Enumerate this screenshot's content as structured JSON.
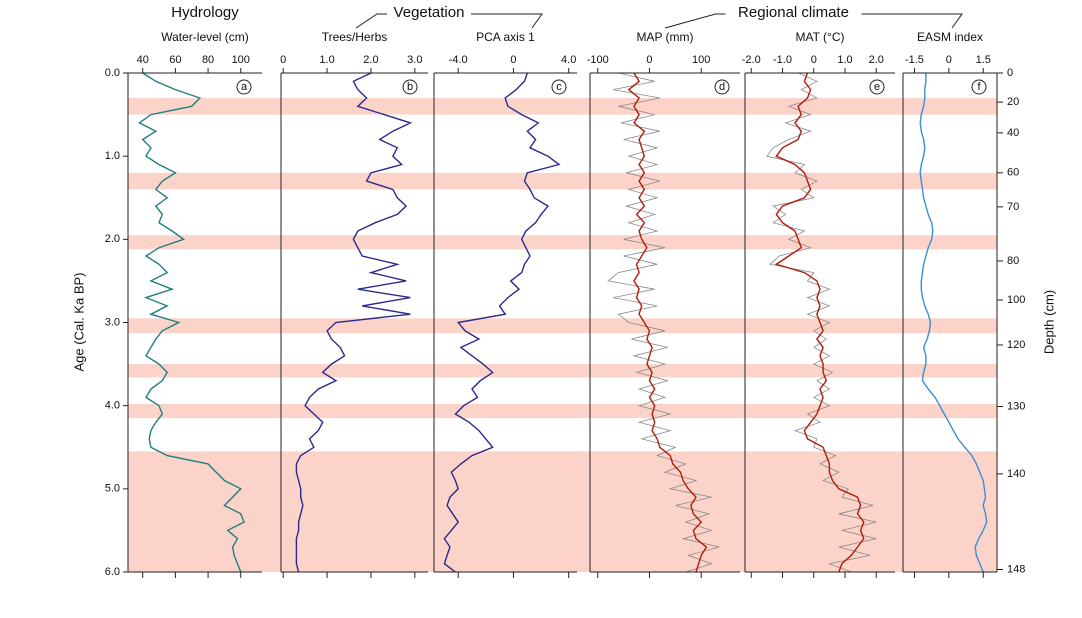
{
  "chart_data": {
    "type": "multi-panel",
    "y_label": "Age (Cal. Ka BP)",
    "ylim": [
      0,
      6
    ],
    "yticks": [
      {
        "value": 0,
        "label": "0.0"
      },
      {
        "value": 1,
        "label": "1.0"
      },
      {
        "value": 2,
        "label": "2.0"
      },
      {
        "value": 3,
        "label": "3.0"
      },
      {
        "value": 4,
        "label": "4.0"
      },
      {
        "value": 5,
        "label": "5.0"
      },
      {
        "value": 6,
        "label": "6.0"
      }
    ],
    "y2_label": "Depth (cm)",
    "y2ticks": [
      0,
      20,
      40,
      60,
      70,
      80,
      100,
      120,
      130,
      140,
      148
    ],
    "depth_age": {
      "depth": [
        0,
        20,
        40,
        60,
        70,
        80,
        100,
        120,
        130,
        140,
        148
      ],
      "age": [
        0,
        0.35,
        0.72,
        1.2,
        1.61,
        2.26,
        2.73,
        3.27,
        4.01,
        4.82,
        5.97
      ]
    },
    "bands": [
      [
        0.3,
        0.5
      ],
      [
        1.2,
        1.4
      ],
      [
        1.95,
        2.12
      ],
      [
        2.95,
        3.13
      ],
      [
        3.5,
        3.66
      ],
      [
        3.98,
        4.15
      ],
      [
        4.55,
        6.0
      ]
    ],
    "band_color": "#fbd3c9",
    "groups": [
      {
        "title": "Hydrology"
      },
      {
        "title": "Vegetation"
      },
      {
        "title": "Regional climate"
      }
    ],
    "ages": [
      0,
      0.1,
      0.2,
      0.3,
      0.4,
      0.5,
      0.6,
      0.7,
      0.8,
      0.9,
      1,
      1.1,
      1.2,
      1.3,
      1.4,
      1.5,
      1.6,
      1.7,
      1.8,
      1.9,
      2,
      2.1,
      2.2,
      2.3,
      2.4,
      2.5,
      2.6,
      2.7,
      2.8,
      2.9,
      3,
      3.1,
      3.2,
      3.3,
      3.4,
      3.5,
      3.6,
      3.7,
      3.8,
      3.9,
      4,
      4.1,
      4.2,
      4.3,
      4.4,
      4.5,
      4.6,
      4.7,
      4.8,
      4.9,
      5,
      5.1,
      5.2,
      5.3,
      5.4,
      5.5,
      5.6,
      5.7,
      5.8,
      5.9,
      6
    ],
    "panels": [
      {
        "type": "line",
        "letter": "a",
        "title": "Water-level (cm)",
        "xlim": [
          31,
          113
        ],
        "xticks": [
          40,
          60,
          80,
          100
        ],
        "series": [
          {
            "color": "#1f7f7f",
            "values": [
              40,
              48,
              60,
              75,
              70,
              45,
              38,
              48,
              40,
              45,
              42,
              50,
              60,
              52,
              48,
              55,
              48,
              52,
              50,
              58,
              65,
              50,
              42,
              50,
              55,
              45,
              58,
              42,
              55,
              45,
              62,
              52,
              48,
              45,
              42,
              50,
              55,
              52,
              45,
              42,
              50,
              52,
              48,
              45,
              44,
              45,
              55,
              80,
              85,
              90,
              100,
              95,
              90,
              100,
              102,
              92,
              98,
              95,
              96,
              98,
              100
            ]
          }
        ]
      },
      {
        "type": "line",
        "letter": "b",
        "title": "Trees/Herbs",
        "xlim": [
          -0.05,
          3.3
        ],
        "xticks": [
          0,
          {
            "value": 1,
            "label": "1.0"
          },
          {
            "value": 2,
            "label": "2.0"
          },
          {
            "value": 3,
            "label": "3.0"
          }
        ],
        "series": [
          {
            "color": "#2b2a8c",
            "values": [
              2.0,
              1.6,
              1.7,
              1.9,
              1.7,
              2.3,
              2.9,
              2.5,
              2.2,
              2.6,
              2.5,
              2.7,
              2.0,
              1.9,
              2.5,
              2.6,
              2.8,
              2.6,
              2.1,
              1.7,
              1.6,
              1.7,
              1.8,
              2.6,
              2.0,
              2.8,
              1.7,
              2.9,
              1.8,
              2.9,
              1.2,
              1.0,
              1.1,
              1.3,
              1.4,
              1.1,
              0.9,
              1.2,
              0.8,
              0.6,
              0.5,
              0.7,
              0.9,
              0.8,
              0.6,
              0.7,
              0.4,
              0.3,
              0.3,
              0.35,
              0.4,
              0.4,
              0.45,
              0.4,
              0.35,
              0.35,
              0.3,
              0.3,
              0.3,
              0.3,
              0.35
            ]
          }
        ]
      },
      {
        "type": "line",
        "letter": "c",
        "title": "PCA axis 1",
        "xlim": [
          -5.75,
          4.6
        ],
        "xticks": [
          {
            "value": -4,
            "label": "-4.0"
          },
          0,
          {
            "value": 4,
            "label": "4.0"
          }
        ],
        "series": [
          {
            "color": "#2b2a8c",
            "values": [
              1.0,
              0.8,
              0.2,
              -0.6,
              -0.4,
              0.6,
              1.8,
              1.0,
              1.6,
              1.2,
              2.5,
              3.3,
              1.0,
              0.8,
              1.2,
              1.5,
              2.5,
              2.0,
              1.6,
              0.9,
              0.6,
              0.9,
              1.2,
              0.8,
              0.6,
              -0.2,
              0.4,
              -0.4,
              -1.0,
              -0.6,
              -4.0,
              -3.5,
              -2.5,
              -3.8,
              -3.0,
              -2.2,
              -1.5,
              -2.4,
              -3.0,
              -2.6,
              -3.6,
              -4.2,
              -3.2,
              -2.5,
              -2.0,
              -1.5,
              -3.0,
              -3.8,
              -4.5,
              -4.2,
              -4.0,
              -4.6,
              -4.8,
              -4.4,
              -4.0,
              -4.5,
              -5.0,
              -4.6,
              -4.8,
              -5.0,
              -4.2
            ]
          }
        ]
      },
      {
        "type": "line",
        "letter": "d",
        "title": "MAP (mm)",
        "xlim": [
          -115,
          175
        ],
        "xticks": [
          -100,
          0,
          100
        ],
        "series": [
          {
            "color": "#8a8a8a",
            "values": [
              -60,
              10,
              -70,
              20,
              -60,
              10,
              -55,
              20,
              -50,
              15,
              -40,
              15,
              -45,
              20,
              -40,
              15,
              -45,
              10,
              -40,
              15,
              -50,
              30,
              -50,
              15,
              -60,
              -80,
              10,
              -70,
              15,
              -60,
              -40,
              30,
              -35,
              35,
              -30,
              30,
              -25,
              35,
              -20,
              30,
              -20,
              40,
              -20,
              40,
              -15,
              50,
              15,
              70,
              30,
              90,
              40,
              120,
              50,
              115,
              70,
              120,
              65,
              135,
              75,
              120,
              70
            ]
          },
          {
            "color": "#b01c0c",
            "values": [
              -30,
              -20,
              -40,
              -20,
              -30,
              -20,
              -30,
              -10,
              -20,
              -15,
              -10,
              -20,
              -10,
              -20,
              -10,
              -20,
              -10,
              -25,
              -10,
              -20,
              -15,
              -5,
              -15,
              -25,
              -20,
              -30,
              -20,
              -25,
              -15,
              -20,
              -10,
              0,
              -5,
              5,
              0,
              -5,
              5,
              0,
              10,
              0,
              10,
              5,
              10,
              5,
              15,
              20,
              40,
              45,
              60,
              65,
              75,
              90,
              80,
              85,
              100,
              85,
              90,
              110,
              100,
              95,
              90
            ]
          }
        ]
      },
      {
        "type": "line",
        "letter": "e",
        "title": "MAT (°C)",
        "xlim": [
          -2.2,
          2.6
        ],
        "xticks": [
          {
            "value": -2,
            "label": "-2.0"
          },
          {
            "value": -1,
            "label": "-1.0"
          },
          0,
          {
            "value": 1,
            "label": "1.0"
          },
          {
            "value": 2,
            "label": "2.0"
          }
        ],
        "series": [
          {
            "color": "#8a8a8a",
            "values": [
              -0.5,
              0.1,
              -0.4,
              0.1,
              -0.8,
              -0.1,
              -0.9,
              -0.1,
              -0.8,
              -1.3,
              -1.5,
              -0.3,
              -0.6,
              0.1,
              -0.4,
              0.0,
              -1.3,
              -0.9,
              -1.3,
              -0.3,
              -0.8,
              -0.1,
              -1.1,
              -1.4,
              0.0,
              -0.2,
              0.5,
              -0.2,
              0.5,
              -0.2,
              0.5,
              0.0,
              0.4,
              0.0,
              0.5,
              0.0,
              0.6,
              0.1,
              0.5,
              0.0,
              0.5,
              -0.2,
              0.2,
              -0.6,
              0.1,
              0.0,
              0.7,
              0.2,
              0.8,
              0.3,
              1.1,
              0.9,
              1.9,
              0.8,
              2.0,
              0.9,
              2.0,
              0.8,
              1.8,
              0.5,
              1.2
            ]
          },
          {
            "color": "#b01c0c",
            "values": [
              -0.2,
              -0.3,
              -0.1,
              -0.2,
              -0.5,
              -0.4,
              -0.6,
              -0.4,
              -0.5,
              -1.0,
              -1.2,
              -0.6,
              -0.3,
              -0.2,
              -0.1,
              -0.3,
              -1.0,
              -1.2,
              -1.0,
              -0.6,
              -0.5,
              -0.4,
              -0.8,
              -1.2,
              -0.3,
              0.1,
              0.2,
              0.1,
              0.2,
              0.1,
              0.2,
              0.3,
              0.1,
              0.3,
              0.2,
              0.3,
              0.3,
              0.4,
              0.2,
              0.3,
              0.2,
              0.1,
              -0.1,
              -0.3,
              -0.2,
              0.3,
              0.4,
              0.5,
              0.5,
              0.6,
              0.8,
              1.4,
              1.5,
              1.4,
              1.6,
              1.5,
              1.6,
              1.4,
              1.2,
              0.9,
              0.8
            ]
          }
        ]
      },
      {
        "type": "line",
        "letter": "f",
        "title": "EASM index",
        "xlim": [
          -2.0,
          2.1
        ],
        "xticks": [
          -1.5,
          0,
          1.5
        ],
        "series": [
          {
            "color": "#3a8fd6",
            "values": [
              -1.0,
              -1.0,
              -1.05,
              -1.05,
              -1.1,
              -1.2,
              -1.25,
              -1.2,
              -1.1,
              -1.05,
              -1.1,
              -1.2,
              -1.25,
              -1.2,
              -1.15,
              -1.1,
              -1.0,
              -0.9,
              -0.75,
              -0.7,
              -0.75,
              -0.9,
              -1.0,
              -1.1,
              -1.15,
              -1.2,
              -1.2,
              -1.15,
              -1.05,
              -0.9,
              -0.8,
              -0.85,
              -0.95,
              -1.1,
              -1.0,
              -1.0,
              -1.1,
              -1.15,
              -0.9,
              -0.6,
              -0.4,
              -0.2,
              0.0,
              0.2,
              0.4,
              0.7,
              1.0,
              1.2,
              1.35,
              1.5,
              1.55,
              1.6,
              1.5,
              1.6,
              1.65,
              1.5,
              1.3,
              1.15,
              1.2,
              1.35,
              1.5
            ]
          }
        ]
      }
    ]
  }
}
